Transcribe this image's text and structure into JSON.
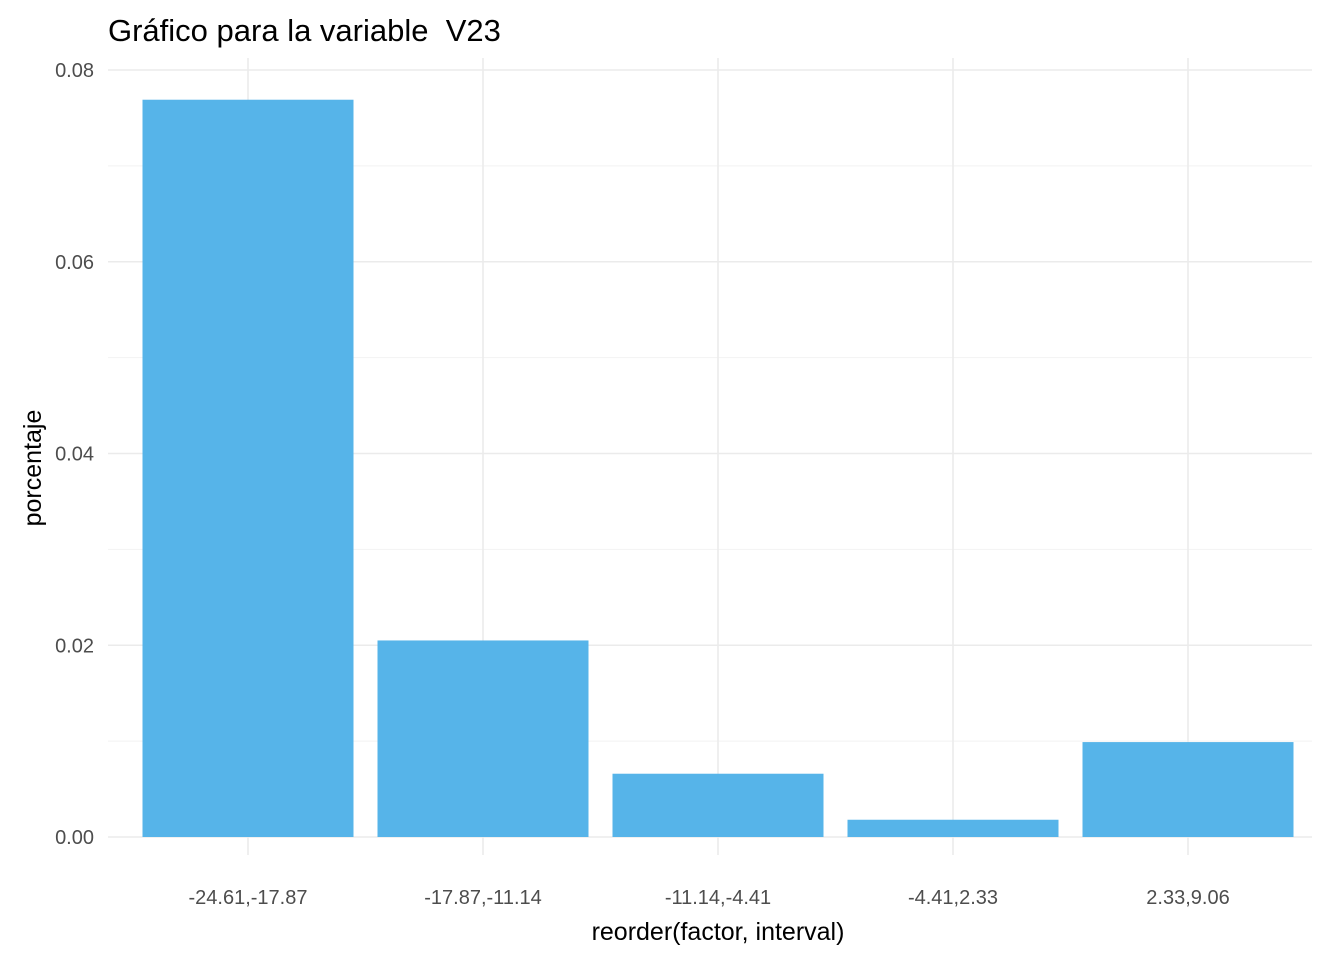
{
  "chart_data": {
    "type": "bar",
    "title": "Gráfico para la variable  V23",
    "xlabel": "reorder(factor, interval)",
    "ylabel": "porcentaje",
    "categories": [
      "-24.61,-17.87",
      "-17.87,-11.14",
      "-11.14,-4.41",
      "-4.41,2.33",
      "2.33,9.06"
    ],
    "values": [
      0.0769,
      0.0205,
      0.0066,
      0.0018,
      0.0099
    ],
    "ylim": [
      0,
      0.08
    ],
    "yticks": [
      "0.00",
      "0.02",
      "0.04",
      "0.06",
      "0.08"
    ],
    "grid": true,
    "legend": "none",
    "bar_color": "#56B4E9"
  }
}
